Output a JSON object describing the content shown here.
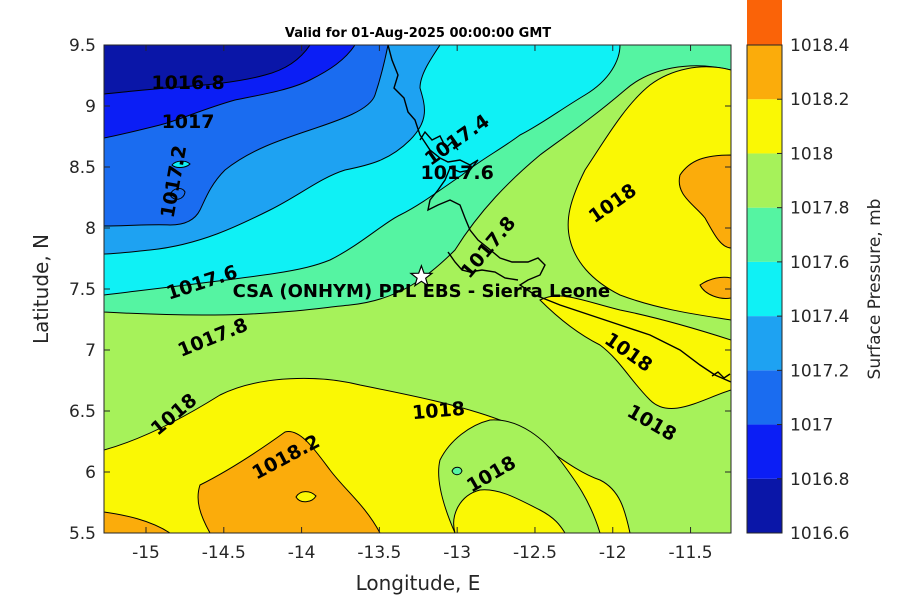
{
  "title": "Valid for 01-Aug-2025 00:00:00 GMT",
  "map": {
    "xlabel": "Longitude, E",
    "ylabel": "Latitude, N",
    "xlim": [
      -15.27,
      -11.24
    ],
    "ylim": [
      5.5,
      9.5
    ],
    "xticks": [
      "-15",
      "-14.5",
      "-14",
      "-13.5",
      "-13",
      "-12.5",
      "-12",
      "-11.5"
    ],
    "xtick_values": [
      -15,
      -14.5,
      -14,
      -13.5,
      -13,
      -12.5,
      -12,
      -11.5
    ],
    "yticks": [
      "5.5",
      "6",
      "6.5",
      "7",
      "7.5",
      "8",
      "8.5",
      "9",
      "9.5"
    ],
    "ytick_values": [
      5.5,
      6,
      6.5,
      7,
      7.5,
      8,
      8.5,
      9,
      9.5
    ]
  },
  "station": {
    "label": "CSA (ONHYM) PPL EBS  - Sierra Leone",
    "lon": -13.23,
    "lat": 7.6,
    "marker": "star-icon"
  },
  "contour_labels": [
    {
      "text": "1016.8",
      "lon": -14.73,
      "lat": 9.19,
      "rot": 0
    },
    {
      "text": "1017",
      "lon": -14.73,
      "lat": 8.87,
      "rot": 0
    },
    {
      "text": "1017.2",
      "lon": -14.82,
      "lat": 8.38,
      "rot": -80
    },
    {
      "text": "1017.4",
      "lon": -13.0,
      "lat": 8.72,
      "rot": -35
    },
    {
      "text": "1017.6",
      "lon": -13.0,
      "lat": 8.45,
      "rot": 0
    },
    {
      "text": "1017.8",
      "lon": -12.8,
      "lat": 7.84,
      "rot": -50
    },
    {
      "text": "1018",
      "lon": -12.0,
      "lat": 8.2,
      "rot": -35
    },
    {
      "text": "1017.6",
      "lon": -14.64,
      "lat": 7.55,
      "rot": -18
    },
    {
      "text": "1017.8",
      "lon": -14.57,
      "lat": 7.1,
      "rot": -22
    },
    {
      "text": "1018",
      "lon": -14.82,
      "lat": 6.47,
      "rot": -40
    },
    {
      "text": "1018",
      "lon": -13.12,
      "lat": 6.5,
      "rot": -5
    },
    {
      "text": "1018.2",
      "lon": -14.1,
      "lat": 6.12,
      "rot": -28
    },
    {
      "text": "1018",
      "lon": -12.78,
      "lat": 5.98,
      "rot": -30
    },
    {
      "text": "1018",
      "lon": -11.9,
      "lat": 6.98,
      "rot": 35
    },
    {
      "text": "1018",
      "lon": -11.75,
      "lat": 6.4,
      "rot": 30
    }
  ],
  "colorbar": {
    "label": "Surface Pressure, mb",
    "levels": [
      1016.6,
      1016.8,
      1017,
      1017.2,
      1017.4,
      1017.6,
      1017.8,
      1018,
      1018.2,
      1018.4
    ],
    "tick_labels": [
      "1016.6",
      "1016.8",
      "1017",
      "1017.2",
      "1017.4",
      "1017.6",
      "1017.8",
      "1018",
      "1018.2",
      "1018.4"
    ],
    "colors": [
      "#0a16a8",
      "#0b1ef5",
      "#1a6cf0",
      "#1ea2f2",
      "#0ff1f5",
      "#55f4a2",
      "#a6f25a",
      "#faf804",
      "#fbac0b",
      "#fa6308"
    ]
  }
}
